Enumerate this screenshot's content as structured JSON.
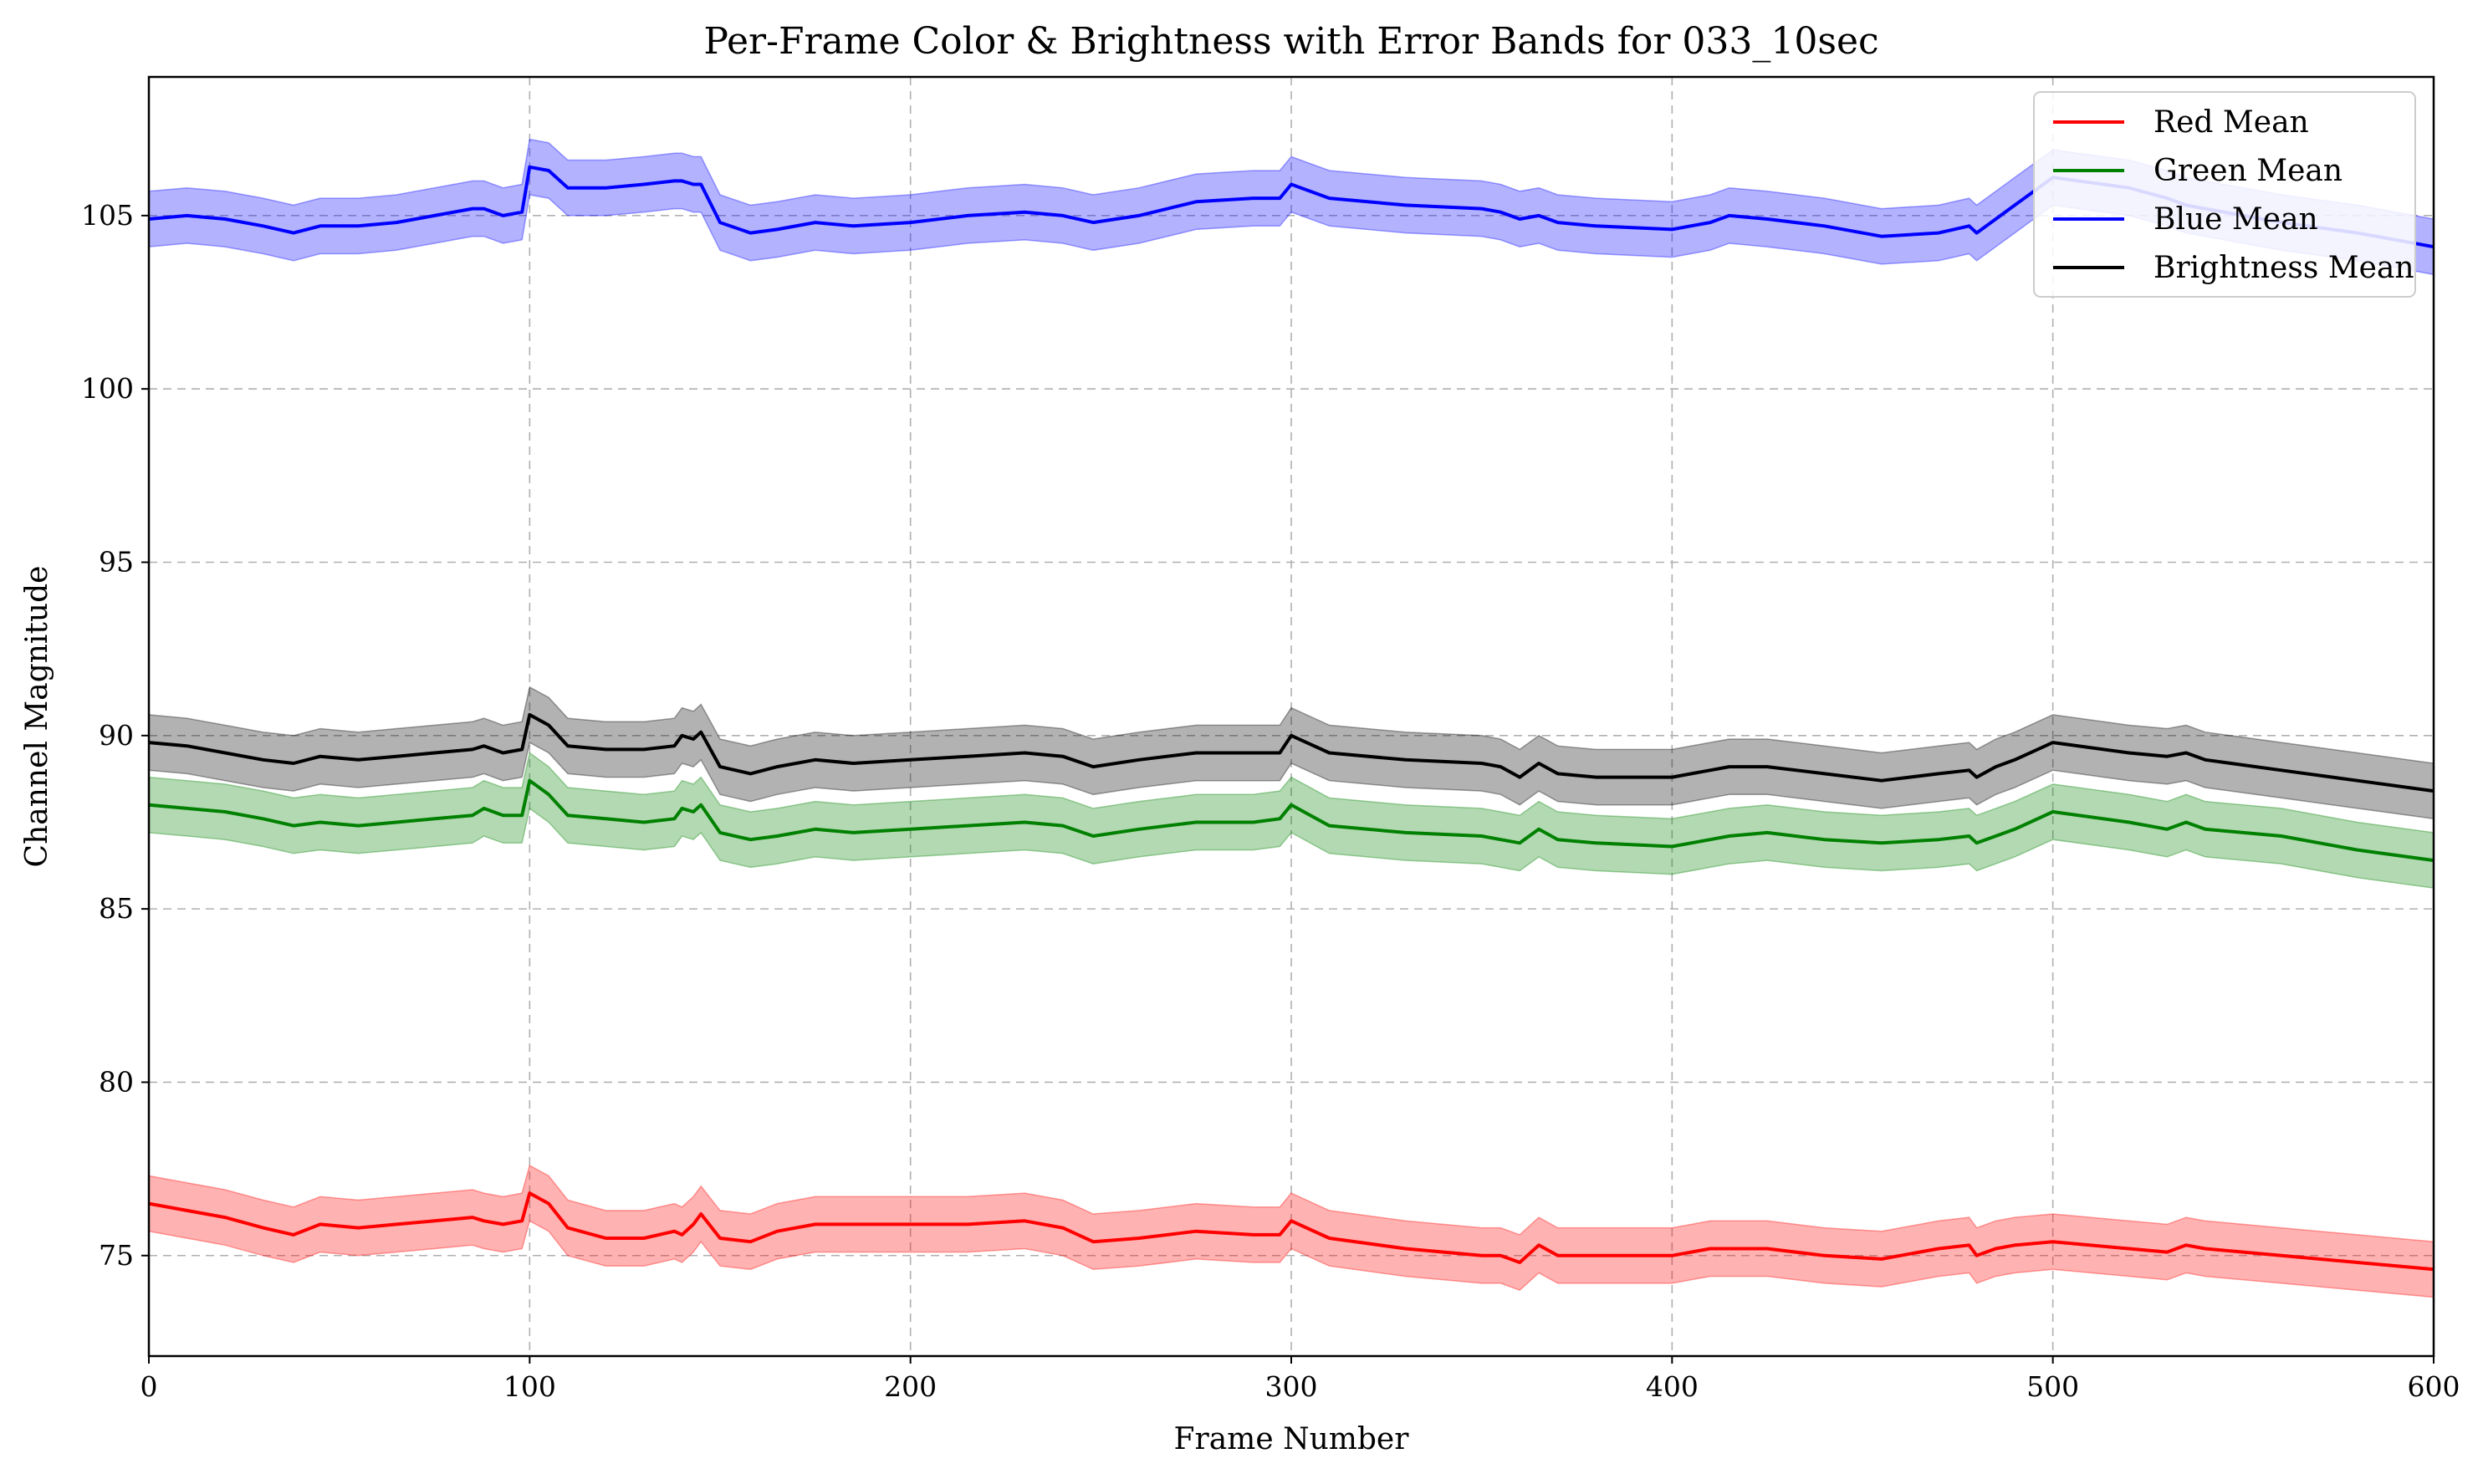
{
  "chart_data": {
    "type": "line",
    "title": "Per-Frame Color & Brightness with Error Bands for 033_10sec",
    "xlabel": "Frame Number",
    "ylabel": "Channel Magnitude",
    "xlim": [
      0,
      600
    ],
    "ylim": [
      72.1,
      109.0
    ],
    "xticks": [
      0,
      100,
      200,
      300,
      400,
      500,
      600
    ],
    "yticks": [
      75,
      80,
      85,
      90,
      95,
      100,
      105
    ],
    "grid": true,
    "legend_position": "top-right",
    "band_note": "shaded band approx. mean ± 0.8",
    "x": [
      0,
      10,
      20,
      30,
      38,
      45,
      55,
      65,
      75,
      85,
      88,
      93,
      98,
      100,
      105,
      110,
      120,
      130,
      138,
      140,
      143,
      145,
      150,
      158,
      165,
      175,
      185,
      200,
      215,
      230,
      240,
      248,
      260,
      275,
      290,
      297,
      300,
      310,
      330,
      350,
      355,
      360,
      365,
      370,
      380,
      400,
      410,
      415,
      425,
      440,
      455,
      470,
      478,
      480,
      485,
      490,
      500,
      520,
      530,
      535,
      540,
      560,
      580,
      600
    ],
    "series": [
      {
        "name": "Red Mean",
        "color": "#ff0000",
        "band_color": "#ff0000",
        "band_halfwidth": 0.8,
        "values": [
          76.5,
          76.3,
          76.1,
          75.8,
          75.6,
          75.9,
          75.8,
          75.9,
          76.0,
          76.1,
          76.0,
          75.9,
          76.0,
          76.8,
          76.5,
          75.8,
          75.5,
          75.5,
          75.7,
          75.6,
          75.9,
          76.2,
          75.5,
          75.4,
          75.7,
          75.9,
          75.9,
          75.9,
          75.9,
          76.0,
          75.8,
          75.4,
          75.5,
          75.7,
          75.6,
          75.6,
          76.0,
          75.5,
          75.2,
          75.0,
          75.0,
          74.8,
          75.3,
          75.0,
          75.0,
          75.0,
          75.2,
          75.2,
          75.2,
          75.0,
          74.9,
          75.2,
          75.3,
          75.0,
          75.2,
          75.3,
          75.4,
          75.2,
          75.1,
          75.3,
          75.2,
          75.0,
          74.8,
          74.6
        ]
      },
      {
        "name": "Green Mean",
        "color": "#008000",
        "band_color": "#008000",
        "band_halfwidth": 0.8,
        "values": [
          88.0,
          87.9,
          87.8,
          87.6,
          87.4,
          87.5,
          87.4,
          87.5,
          87.6,
          87.7,
          87.9,
          87.7,
          87.7,
          88.7,
          88.3,
          87.7,
          87.6,
          87.5,
          87.6,
          87.9,
          87.8,
          88.0,
          87.2,
          87.0,
          87.1,
          87.3,
          87.2,
          87.3,
          87.4,
          87.5,
          87.4,
          87.1,
          87.3,
          87.5,
          87.5,
          87.6,
          88.0,
          87.4,
          87.2,
          87.1,
          87.0,
          86.9,
          87.3,
          87.0,
          86.9,
          86.8,
          87.0,
          87.1,
          87.2,
          87.0,
          86.9,
          87.0,
          87.1,
          86.9,
          87.1,
          87.3,
          87.8,
          87.5,
          87.3,
          87.5,
          87.3,
          87.1,
          86.7,
          86.4
        ]
      },
      {
        "name": "Blue Mean",
        "color": "#0000ff",
        "band_color": "#0000ff",
        "band_halfwidth": 0.8,
        "values": [
          104.9,
          105.0,
          104.9,
          104.7,
          104.5,
          104.7,
          104.7,
          104.8,
          105.0,
          105.2,
          105.2,
          105.0,
          105.1,
          106.4,
          106.3,
          105.8,
          105.8,
          105.9,
          106.0,
          106.0,
          105.9,
          105.9,
          104.8,
          104.5,
          104.6,
          104.8,
          104.7,
          104.8,
          105.0,
          105.1,
          105.0,
          104.8,
          105.0,
          105.4,
          105.5,
          105.5,
          105.9,
          105.5,
          105.3,
          105.2,
          105.1,
          104.9,
          105.0,
          104.8,
          104.7,
          104.6,
          104.8,
          105.0,
          104.9,
          104.7,
          104.4,
          104.5,
          104.7,
          104.5,
          104.9,
          105.3,
          106.1,
          105.8,
          105.5,
          105.3,
          105.2,
          104.8,
          104.5,
          104.1
        ]
      },
      {
        "name": "Brightness Mean",
        "color": "#000000",
        "band_color": "#000000",
        "band_halfwidth": 0.8,
        "values": [
          89.8,
          89.7,
          89.5,
          89.3,
          89.2,
          89.4,
          89.3,
          89.4,
          89.5,
          89.6,
          89.7,
          89.5,
          89.6,
          90.6,
          90.3,
          89.7,
          89.6,
          89.6,
          89.7,
          90.0,
          89.9,
          90.1,
          89.1,
          88.9,
          89.1,
          89.3,
          89.2,
          89.3,
          89.4,
          89.5,
          89.4,
          89.1,
          89.3,
          89.5,
          89.5,
          89.5,
          90.0,
          89.5,
          89.3,
          89.2,
          89.1,
          88.8,
          89.2,
          88.9,
          88.8,
          88.8,
          89.0,
          89.1,
          89.1,
          88.9,
          88.7,
          88.9,
          89.0,
          88.8,
          89.1,
          89.3,
          89.8,
          89.5,
          89.4,
          89.5,
          89.3,
          89.0,
          88.7,
          88.4
        ]
      }
    ]
  }
}
